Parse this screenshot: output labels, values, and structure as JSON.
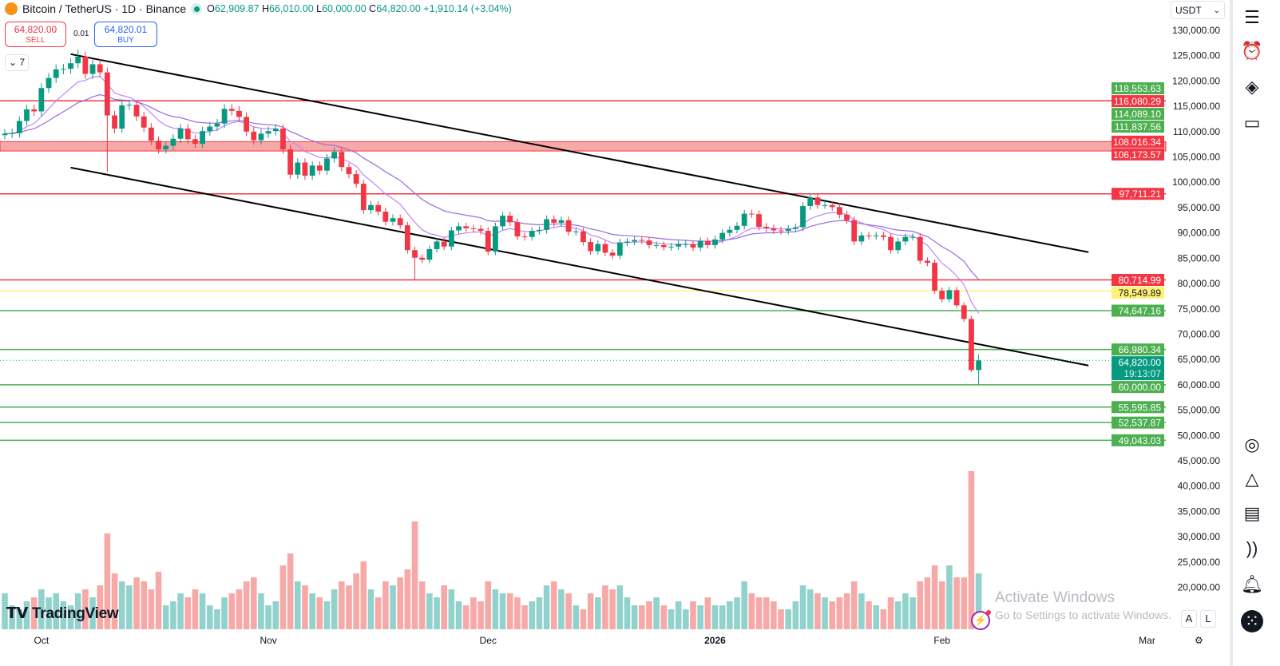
{
  "header": {
    "symbol": "Bitcoin / TetherUS · 1D · Binance",
    "open_label": "O",
    "open": "62,909.87",
    "high_label": "H",
    "high": "66,010.00",
    "low_label": "L",
    "low": "60,000.00",
    "close_label": "C",
    "close": "64,820.00",
    "change": "+1,910.14 (+3.04%)"
  },
  "trade": {
    "sell_price": "64,820.00",
    "sell_label": "SELL",
    "spread": "0.01",
    "buy_price": "64,820.01",
    "buy_label": "BUY"
  },
  "indicators_toggle": "7",
  "currency": "USDT",
  "branding": "TradingView",
  "scale_buttons": {
    "auto": "A",
    "log": "L"
  },
  "watermark": {
    "line1": "Activate Windows",
    "line2": "Go to Settings to activate Windows."
  },
  "toolbar_icons": [
    "watchlist-icon",
    "alarm-clock-icon",
    "layers-icon",
    "chat-icon",
    "target-icon",
    "ideas-icon",
    "calendar-icon",
    "streams-icon",
    "bell-icon",
    "apps-grid-icon"
  ],
  "colors": {
    "up": "#089981",
    "down": "#f23645",
    "up_volume": "#92d2cc",
    "down_volume": "#f7a9a7",
    "ma": "#a855f7",
    "support": "#4caf50",
    "resistance": "#f23645",
    "highlight": "#fff176",
    "current": "#089981"
  },
  "chart_data": {
    "type": "candlestick",
    "start_date": "2025-09-26",
    "interval": "1D",
    "close": [
      109600,
      109700,
      112100,
      114400,
      114000,
      118600,
      120600,
      122300,
      122400,
      123500,
      124800,
      121400,
      123300,
      121700,
      113200,
      110600,
      115200,
      115300,
      113000,
      110800,
      108200,
      106500,
      107200,
      108600,
      110600,
      108500,
      107600,
      110100,
      111000,
      111600,
      114500,
      114100,
      112900,
      110000,
      108300,
      109600,
      110100,
      110600,
      106500,
      101500,
      103900,
      101300,
      103300,
      102300,
      104700,
      106000,
      103000,
      101600,
      99700,
      94500,
      95500,
      94200,
      92200,
      92900,
      91500,
      86600,
      85100,
      84700,
      86800,
      88300,
      87300,
      90500,
      91300,
      90900,
      90800,
      90400,
      86300,
      91300,
      93400,
      92100,
      89300,
      89200,
      90400,
      90600,
      92700,
      92000,
      92500,
      90200,
      90300,
      88200,
      86400,
      87800,
      86100,
      85500,
      88100,
      88300,
      88600,
      88500,
      87600,
      87600,
      87200,
      87300,
      87800,
      87800,
      87100,
      88400,
      87600,
      88700,
      90000,
      90600,
      91400,
      93800,
      93700,
      91200,
      90900,
      90500,
      90400,
      90800,
      91100,
      95300,
      97000,
      95500,
      95500,
      95100,
      93600,
      92500,
      88300,
      89500,
      89400,
      89500,
      89200,
      86600,
      88300,
      89200,
      89200,
      84500,
      84100,
      78600,
      76900,
      78700,
      75700,
      73000,
      62909.87,
      64820
    ],
    "notable_wicks": [
      {
        "date": "2025-10-06",
        "high": 126200
      },
      {
        "date": "2025-10-10",
        "low": 102000
      },
      {
        "date": "2025-11-21",
        "low": 80600
      },
      {
        "date": "2026-02-05",
        "low": 62500
      },
      {
        "date": "2026-02-06",
        "high": 66010,
        "low": 60000
      }
    ],
    "volume": [
      45,
      30,
      25,
      35,
      40,
      50,
      40,
      45,
      35,
      30,
      45,
      50,
      40,
      55,
      120,
      70,
      60,
      55,
      65,
      60,
      50,
      72,
      30,
      35,
      45,
      40,
      50,
      45,
      30,
      25,
      40,
      45,
      50,
      60,
      65,
      45,
      30,
      35,
      80,
      95,
      60,
      55,
      45,
      40,
      35,
      50,
      60,
      55,
      70,
      85,
      50,
      40,
      60,
      55,
      65,
      75,
      135,
      60,
      45,
      40,
      55,
      50,
      35,
      30,
      40,
      35,
      60,
      50,
      45,
      45,
      40,
      30,
      35,
      40,
      55,
      60,
      50,
      45,
      30,
      25,
      45,
      40,
      55,
      50,
      55,
      40,
      30,
      30,
      35,
      40,
      30,
      25,
      35,
      25,
      35,
      30,
      40,
      30,
      30,
      35,
      40,
      60,
      45,
      40,
      40,
      35,
      25,
      25,
      35,
      55,
      50,
      45,
      40,
      35,
      40,
      45,
      60,
      45,
      35,
      30,
      25,
      40,
      35,
      45,
      40,
      60,
      65,
      80,
      60,
      80,
      65,
      65,
      198,
      70
    ],
    "moving_averages": [
      {
        "period": 9
      },
      {
        "period": 21
      }
    ],
    "trendlines": [
      {
        "from": [
          "2025-10-05",
          125300
        ],
        "to": [
          "2026-02-21",
          86200
        ]
      },
      {
        "from": [
          "2025-10-05",
          102900
        ],
        "to": [
          "2026-02-21",
          63800
        ]
      }
    ],
    "zone": {
      "top": 108016.34,
      "bottom": 106173.57,
      "label_top": "108.016.34",
      "label_bottom": "106,173.57"
    },
    "levels": [
      {
        "price": 116080.29,
        "label": "116,080.29",
        "kind": "resistance",
        "line": true
      },
      {
        "price": 118553.63,
        "label": "118,553.63",
        "kind": "support",
        "line": false
      },
      {
        "price": 114089.1,
        "label": "114,089.10",
        "kind": "support",
        "line": false
      },
      {
        "price": 111837.56,
        "label": "111,837.56",
        "kind": "support",
        "line": false
      },
      {
        "price": 97711.21,
        "label": "97,711.21",
        "kind": "resistance",
        "line": true
      },
      {
        "price": 80714.99,
        "label": "80,714.99",
        "kind": "resistance",
        "line": true
      },
      {
        "price": 78549.89,
        "label": "78,549.89",
        "kind": "highlight",
        "line": true
      },
      {
        "price": 74647.16,
        "label": "74,647.16",
        "kind": "support",
        "line": true
      },
      {
        "price": 66980.34,
        "label": "66,980.34",
        "kind": "support",
        "line": true
      },
      {
        "price": 60000.0,
        "label": "60,000.00",
        "kind": "support",
        "line": true
      },
      {
        "price": 55595.85,
        "label": "55,595.85",
        "kind": "support",
        "line": true
      },
      {
        "price": 52537.87,
        "label": "52,537.87",
        "kind": "support",
        "line": true
      },
      {
        "price": 49043.03,
        "label": "49,043.03",
        "kind": "support",
        "line": true
      }
    ],
    "current_price": {
      "price": 64820.0,
      "label": "64,820.00",
      "countdown": "19:13:07"
    },
    "y_ticks": [
      "130,000.00",
      "125,000.00",
      "120,000.00",
      "115,000.00",
      "110,000.00",
      "105,000.00",
      "100,000.00",
      "95,000.00",
      "90,000.00",
      "85,000.00",
      "80,000.00",
      "75,000.00",
      "70,000.00",
      "65,000.00",
      "60,000.00",
      "55,000.00",
      "50,000.00",
      "45,000.00",
      "40,000.00",
      "35,000.00",
      "30,000.00",
      "25,000.00",
      "20,000.00"
    ],
    "ylim": [
      20000,
      130000
    ],
    "x_ticks": [
      {
        "label": "Oct",
        "date": "2025-10-01"
      },
      {
        "label": "Nov",
        "date": "2025-11-01"
      },
      {
        "label": "Dec",
        "date": "2025-12-01"
      },
      {
        "label": "2026",
        "date": "2026-01-01"
      },
      {
        "label": "Feb",
        "date": "2026-02-01"
      },
      {
        "label": "Mar",
        "date": "2026-03-01"
      }
    ]
  }
}
